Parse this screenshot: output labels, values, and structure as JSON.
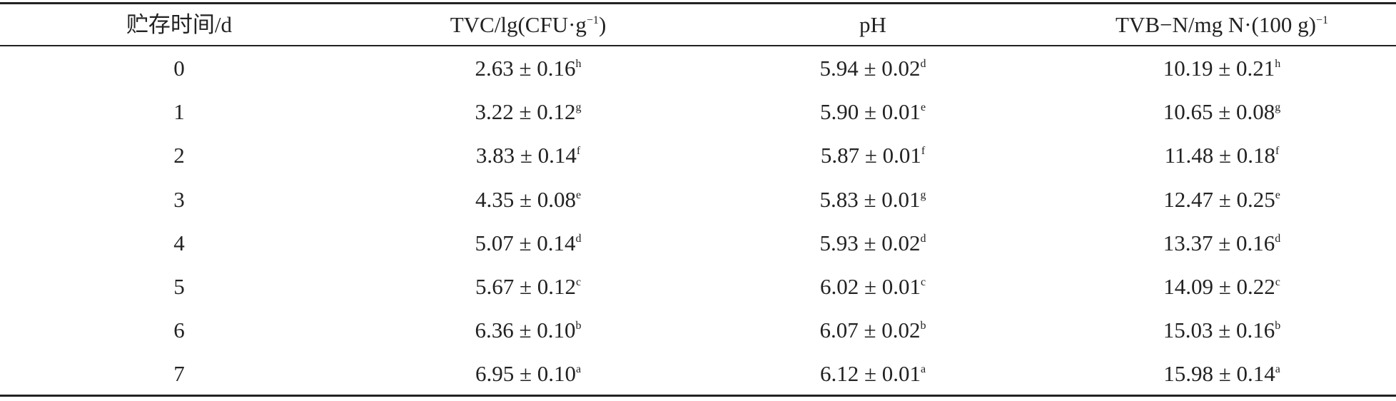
{
  "table": {
    "header": [
      {
        "text": "贮存时间/d"
      },
      {
        "text": "TVC/lg(CFU·g",
        "sup": "−1",
        "after": ")"
      },
      {
        "text": "pH"
      },
      {
        "text": "TVB−N/mg N·(100 g)",
        "sup": "−1"
      }
    ],
    "rows": [
      [
        "0",
        {
          "text": "2.63 ± 0.16",
          "sup": "h"
        },
        {
          "text": "5.94 ± 0.02",
          "sup": "d"
        },
        {
          "text": "10.19 ± 0.21",
          "sup": "h"
        }
      ],
      [
        "1",
        {
          "text": "3.22 ± 0.12",
          "sup": "g"
        },
        {
          "text": "5.90 ± 0.01",
          "sup": "e"
        },
        {
          "text": "10.65 ± 0.08",
          "sup": "g"
        }
      ],
      [
        "2",
        {
          "text": "3.83 ± 0.14",
          "sup": "f"
        },
        {
          "text": "5.87 ± 0.01",
          "sup": "f"
        },
        {
          "text": "11.48 ± 0.18",
          "sup": "f"
        }
      ],
      [
        "3",
        {
          "text": "4.35 ± 0.08",
          "sup": "e"
        },
        {
          "text": "5.83 ± 0.01",
          "sup": "g"
        },
        {
          "text": "12.47 ± 0.25",
          "sup": "e"
        }
      ],
      [
        "4",
        {
          "text": "5.07 ± 0.14",
          "sup": "d"
        },
        {
          "text": "5.93 ± 0.02",
          "sup": "d"
        },
        {
          "text": "13.37 ± 0.16",
          "sup": "d"
        }
      ],
      [
        "5",
        {
          "text": "5.67 ± 0.12",
          "sup": "c"
        },
        {
          "text": "6.02 ± 0.01",
          "sup": "c"
        },
        {
          "text": "14.09 ± 0.22",
          "sup": "c"
        }
      ],
      [
        "6",
        {
          "text": "6.36 ± 0.10",
          "sup": "b"
        },
        {
          "text": "6.07 ± 0.02",
          "sup": "b"
        },
        {
          "text": "15.03 ± 0.16",
          "sup": "b"
        }
      ],
      [
        "7",
        {
          "text": "6.95 ± 0.10",
          "sup": "a"
        },
        {
          "text": "6.12 ± 0.01",
          "sup": "a"
        },
        {
          "text": "15.98 ± 0.14",
          "sup": "a"
        }
      ]
    ]
  }
}
